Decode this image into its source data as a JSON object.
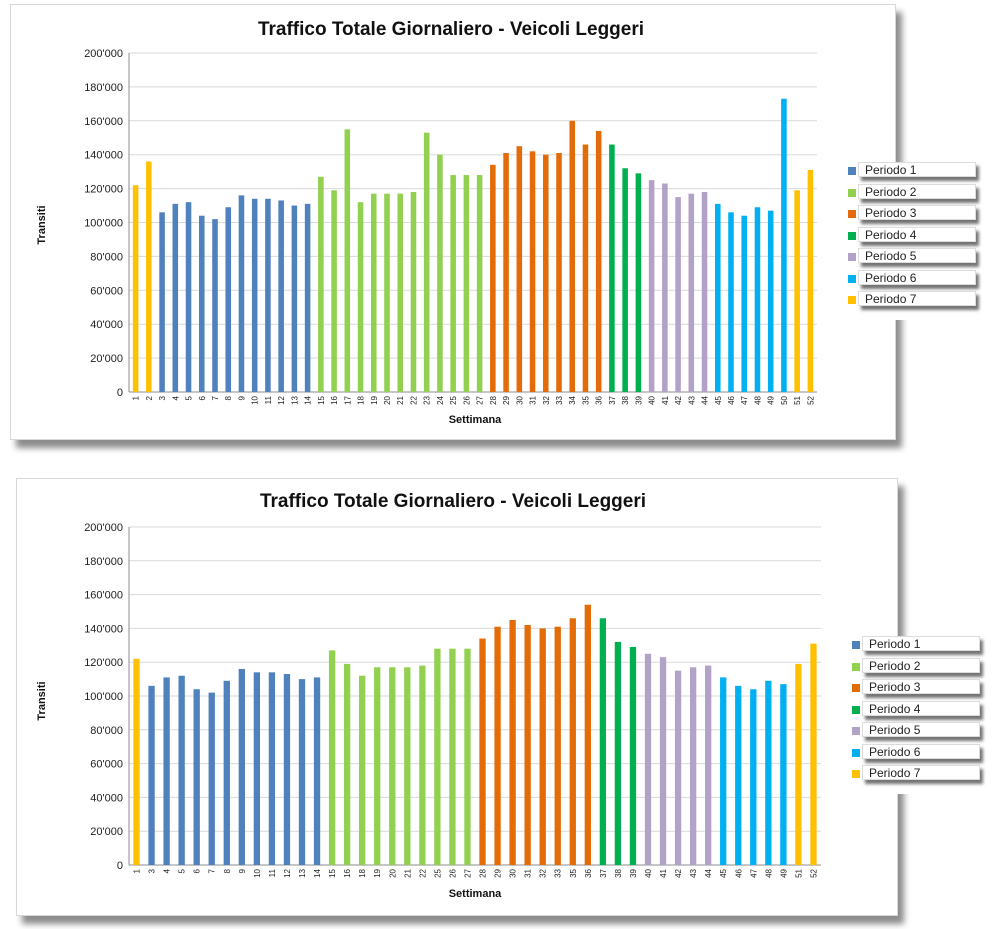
{
  "colors": {
    "Periodo 1": "#4f81bd",
    "Periodo 2": "#92d050",
    "Periodo 3": "#e36c09",
    "Periodo 4": "#00b050",
    "Periodo 5": "#b3a2c7",
    "Periodo 6": "#00b0f0",
    "Periodo 7": "#ffc000"
  },
  "legend": [
    "Periodo 1",
    "Periodo 2",
    "Periodo 3",
    "Periodo 4",
    "Periodo 5",
    "Periodo 6",
    "Periodo 7"
  ],
  "chart_data": [
    {
      "type": "bar",
      "title": "Traffico Totale Giornaliero - Veicoli Leggeri",
      "xlabel": "Settimana",
      "ylabel": "Transiti",
      "ylim": [
        0,
        200000
      ],
      "yticks": [
        "0",
        "20'000",
        "40'000",
        "60'000",
        "80'000",
        "100'000",
        "120'000",
        "140'000",
        "160'000",
        "180'000",
        "200'000"
      ],
      "grid": true,
      "legend_position": "right",
      "categories": [
        "1",
        "2",
        "3",
        "4",
        "5",
        "6",
        "7",
        "8",
        "9",
        "10",
        "11",
        "12",
        "13",
        "14",
        "15",
        "16",
        "17",
        "18",
        "19",
        "20",
        "21",
        "22",
        "23",
        "24",
        "25",
        "26",
        "27",
        "28",
        "29",
        "30",
        "31",
        "32",
        "33",
        "34",
        "35",
        "36",
        "37",
        "38",
        "39",
        "40",
        "41",
        "42",
        "43",
        "44",
        "45",
        "46",
        "47",
        "48",
        "49",
        "50",
        "51",
        "52"
      ],
      "values": [
        122000,
        136000,
        106000,
        111000,
        112000,
        104000,
        102000,
        109000,
        116000,
        114000,
        114000,
        113000,
        110000,
        111000,
        127000,
        119000,
        155000,
        112000,
        117000,
        117000,
        117000,
        118000,
        153000,
        140000,
        128000,
        128000,
        128000,
        134000,
        141000,
        145000,
        142000,
        140000,
        141000,
        160000,
        146000,
        154000,
        146000,
        132000,
        129000,
        125000,
        123000,
        115000,
        117000,
        118000,
        111000,
        106000,
        104000,
        109000,
        107000,
        173000,
        119000,
        131000
      ],
      "period": [
        "Periodo 7",
        "Periodo 7",
        "Periodo 1",
        "Periodo 1",
        "Periodo 1",
        "Periodo 1",
        "Periodo 1",
        "Periodo 1",
        "Periodo 1",
        "Periodo 1",
        "Periodo 1",
        "Periodo 1",
        "Periodo 1",
        "Periodo 1",
        "Periodo 2",
        "Periodo 2",
        "Periodo 2",
        "Periodo 2",
        "Periodo 2",
        "Periodo 2",
        "Periodo 2",
        "Periodo 2",
        "Periodo 2",
        "Periodo 2",
        "Periodo 2",
        "Periodo 2",
        "Periodo 2",
        "Periodo 3",
        "Periodo 3",
        "Periodo 3",
        "Periodo 3",
        "Periodo 3",
        "Periodo 3",
        "Periodo 3",
        "Periodo 3",
        "Periodo 3",
        "Periodo 4",
        "Periodo 4",
        "Periodo 4",
        "Periodo 5",
        "Periodo 5",
        "Periodo 5",
        "Periodo 5",
        "Periodo 5",
        "Periodo 6",
        "Periodo 6",
        "Periodo 6",
        "Periodo 6",
        "Periodo 6",
        "Periodo 6",
        "Periodo 7",
        "Periodo 7"
      ]
    },
    {
      "type": "bar",
      "title": "Traffico Totale Giornaliero - Veicoli Leggeri",
      "xlabel": "Settimana",
      "ylabel": "Transiti",
      "ylim": [
        0,
        200000
      ],
      "yticks": [
        "0",
        "20'000",
        "40'000",
        "60'000",
        "80'000",
        "100'000",
        "120'000",
        "140'000",
        "160'000",
        "180'000",
        "200'000"
      ],
      "grid": true,
      "legend_position": "right",
      "categories": [
        "1",
        "3",
        "4",
        "5",
        "6",
        "7",
        "8",
        "9",
        "10",
        "11",
        "12",
        "13",
        "14",
        "15",
        "16",
        "18",
        "19",
        "20",
        "21",
        "22",
        "25",
        "26",
        "27",
        "28",
        "29",
        "30",
        "31",
        "32",
        "33",
        "35",
        "36",
        "37",
        "38",
        "39",
        "40",
        "41",
        "42",
        "43",
        "44",
        "45",
        "46",
        "47",
        "48",
        "49",
        "51",
        "52"
      ],
      "values": [
        122000,
        106000,
        111000,
        112000,
        104000,
        102000,
        109000,
        116000,
        114000,
        114000,
        113000,
        110000,
        111000,
        127000,
        119000,
        112000,
        117000,
        117000,
        117000,
        118000,
        128000,
        128000,
        128000,
        134000,
        141000,
        145000,
        142000,
        140000,
        141000,
        146000,
        154000,
        146000,
        132000,
        129000,
        125000,
        123000,
        115000,
        117000,
        118000,
        111000,
        106000,
        104000,
        109000,
        107000,
        119000,
        131000
      ],
      "period": [
        "Periodo 7",
        "Periodo 1",
        "Periodo 1",
        "Periodo 1",
        "Periodo 1",
        "Periodo 1",
        "Periodo 1",
        "Periodo 1",
        "Periodo 1",
        "Periodo 1",
        "Periodo 1",
        "Periodo 1",
        "Periodo 1",
        "Periodo 2",
        "Periodo 2",
        "Periodo 2",
        "Periodo 2",
        "Periodo 2",
        "Periodo 2",
        "Periodo 2",
        "Periodo 2",
        "Periodo 2",
        "Periodo 2",
        "Periodo 3",
        "Periodo 3",
        "Periodo 3",
        "Periodo 3",
        "Periodo 3",
        "Periodo 3",
        "Periodo 3",
        "Periodo 3",
        "Periodo 4",
        "Periodo 4",
        "Periodo 4",
        "Periodo 5",
        "Periodo 5",
        "Periodo 5",
        "Periodo 5",
        "Periodo 5",
        "Periodo 6",
        "Periodo 6",
        "Periodo 6",
        "Periodo 6",
        "Periodo 6",
        "Periodo 7",
        "Periodo 7"
      ]
    }
  ]
}
